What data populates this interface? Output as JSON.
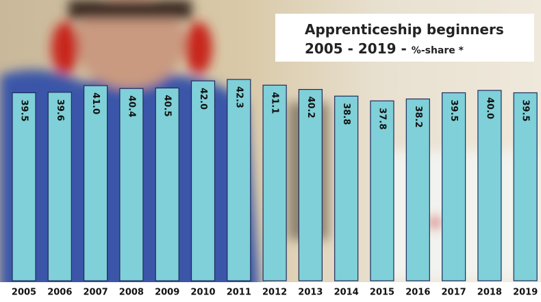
{
  "chart_data": {
    "type": "bar",
    "title": "Apprenticeship beginners",
    "subtitle": "2005 - 2019 -",
    "unit_note": "%-share *",
    "categories": [
      "2005",
      "2006",
      "2007",
      "2008",
      "2009",
      "2010",
      "2011",
      "2012",
      "2013",
      "2014",
      "2015",
      "2016",
      "2017",
      "2018",
      "2019"
    ],
    "values": [
      39.5,
      39.6,
      41.0,
      40.4,
      40.5,
      42.0,
      42.3,
      41.1,
      40.2,
      38.8,
      37.8,
      38.2,
      39.5,
      40.0,
      39.5
    ],
    "value_labels": [
      "39.5",
      "39.6",
      "41.0",
      "40.4",
      "40.5",
      "42.0",
      "42.3",
      "41.1",
      "40.2",
      "38.8",
      "37.8",
      "38.2",
      "39.5",
      "40.0",
      "39.5"
    ],
    "color": "#7fd0d8"
  }
}
